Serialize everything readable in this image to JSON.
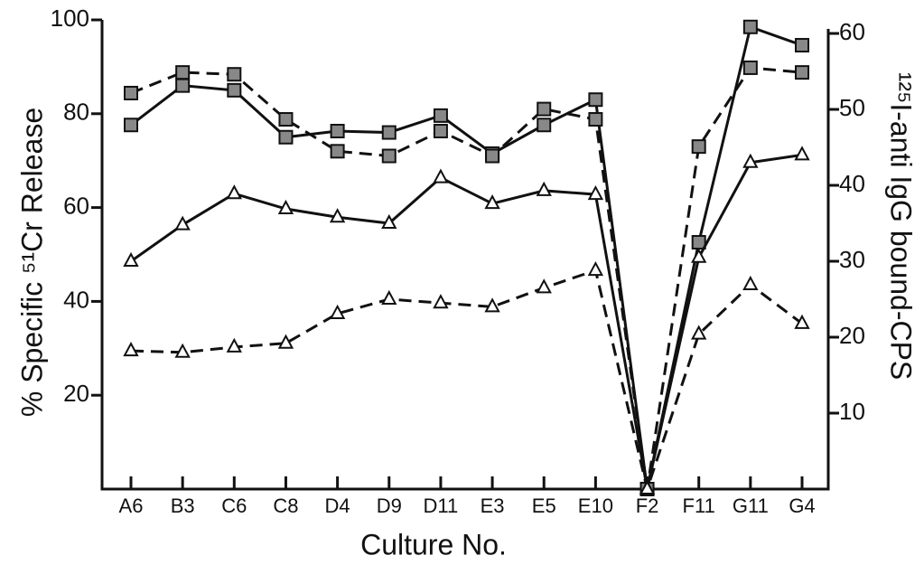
{
  "chart_data": {
    "type": "line",
    "x_label": "Culture No.",
    "y_label": "% Specific ⁵¹Cr Release",
    "y2_label": "¹²⁵I-anti IgG bound-CPS",
    "categories": [
      "A6",
      "B3",
      "C6",
      "C8",
      "D4",
      "D9",
      "D11",
      "E3",
      "E5",
      "E10",
      "F2",
      "F11",
      "G11",
      "G4"
    ],
    "ylim": [
      0,
      100
    ],
    "yticks": [
      20,
      40,
      60,
      80,
      100
    ],
    "y2lim": [
      0,
      60
    ],
    "y2ticks": [
      10,
      20,
      30,
      40,
      50,
      60
    ],
    "series": [
      {
        "color": "#111111",
        "line": "solid",
        "marker": "square",
        "values": [
          77.6,
          86,
          85,
          75,
          76.3,
          76,
          79.6,
          71.5,
          77.6,
          83,
          0,
          52.6,
          98.5,
          94.6
        ]
      },
      {
        "color": "#111111",
        "line": "dashed",
        "marker": "square",
        "values": [
          84.4,
          88.8,
          88.4,
          78.8,
          72,
          71,
          76.3,
          71,
          81,
          78.8,
          0,
          73,
          89.8,
          88.8
        ]
      },
      {
        "color": "#111111",
        "line": "solid",
        "marker": "triangle",
        "axis": "y2",
        "values": [
          30,
          34.8,
          38.9,
          36.9,
          35.8,
          35,
          41,
          37.6,
          39.3,
          38.8,
          0,
          30.5,
          43,
          44
        ]
      },
      {
        "color": "#111111",
        "line": "dashed",
        "marker": "triangle",
        "axis": "y2",
        "values": [
          18.2,
          18,
          18.7,
          19.2,
          23.1,
          25,
          24.5,
          24,
          26.5,
          28.8,
          0,
          20.4,
          26.9,
          21.8
        ]
      }
    ]
  }
}
